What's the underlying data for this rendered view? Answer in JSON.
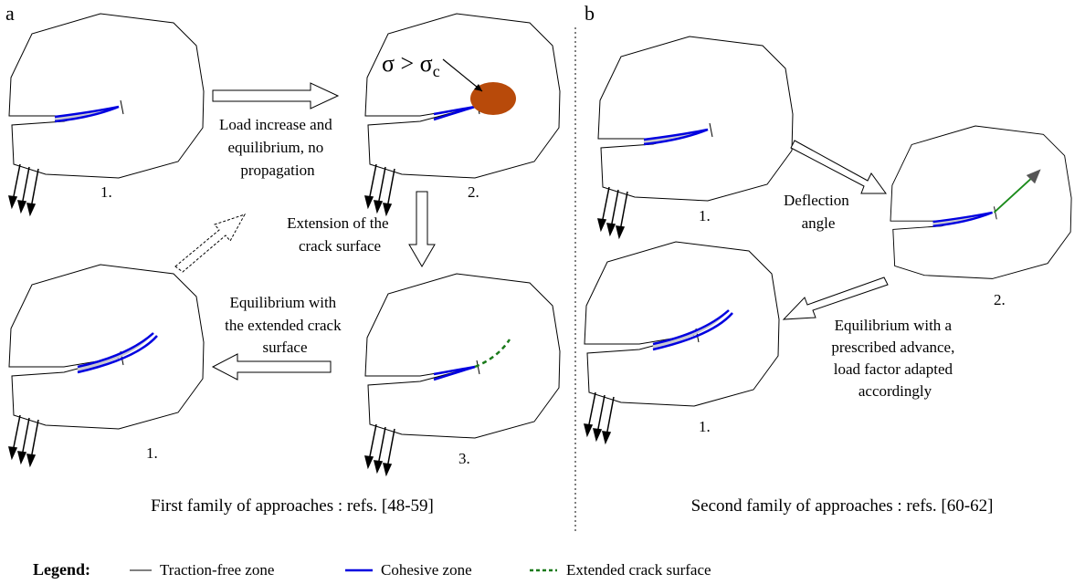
{
  "panel_a": {
    "label": "a",
    "step_labels": [
      "1.",
      "2.",
      "3.",
      "1."
    ],
    "stress_label": {
      "main": "σ > σ",
      "subscript": "c"
    },
    "arrow_texts": [
      {
        "lines": [
          "Load increase and",
          "equilibrium, no",
          "propagation"
        ]
      },
      {
        "lines": [
          "Extension of the",
          "crack surface"
        ]
      },
      {
        "lines": [
          "Equilibrium with",
          "the extended crack",
          "surface"
        ]
      }
    ],
    "caption": "First family of approaches : refs. [48-59]"
  },
  "panel_b": {
    "label": "b",
    "step_labels": [
      "1.",
      "2.",
      "1."
    ],
    "arrow_texts": [
      {
        "lines": [
          "Deflection",
          "angle"
        ]
      },
      {
        "lines": [
          "Equilibrium with a",
          "prescribed advance,",
          "load factor adapted",
          "accordingly"
        ]
      }
    ],
    "caption": "Second family of approaches : refs. [60-62]"
  },
  "legend": {
    "title": "Legend:",
    "items": [
      "Traction-free zone",
      "Cohesive zone",
      "Extended crack surface"
    ]
  }
}
